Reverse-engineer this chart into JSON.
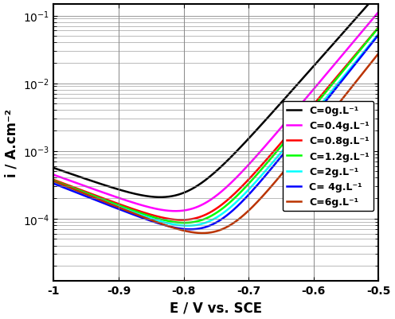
{
  "title": "",
  "xlabel": "E / V vs. SCE",
  "ylabel": "i / A.cm⁻²",
  "xlim": [
    -1.0,
    -0.5
  ],
  "ylim_log": [
    1.2e-05,
    0.15
  ],
  "curves": [
    {
      "label": "C=0g.L⁻¹",
      "color": "#000000",
      "E_corr": -0.8,
      "i_corr": 0.00012,
      "ba": 0.04,
      "bc": 0.13
    },
    {
      "label": "C=0.4g.L⁻¹",
      "color": "#FF00FF",
      "E_corr": -0.778,
      "i_corr": 7.5e-05,
      "ba": 0.038,
      "bc": 0.125
    },
    {
      "label": "C=0.8g.L⁻¹",
      "color": "#FF0000",
      "E_corr": -0.77,
      "i_corr": 5.5e-05,
      "ba": 0.038,
      "bc": 0.12
    },
    {
      "label": "C=1.2g.L⁻¹",
      "color": "#00FF00",
      "E_corr": -0.766,
      "i_corr": 5e-05,
      "ba": 0.037,
      "bc": 0.118
    },
    {
      "label": "C=2g.L⁻¹",
      "color": "#00FFFF",
      "E_corr": -0.762,
      "i_corr": 4.5e-05,
      "ba": 0.037,
      "bc": 0.116
    },
    {
      "label": "C= 4g.L⁻¹",
      "color": "#0000FF",
      "E_corr": -0.758,
      "i_corr": 4e-05,
      "ba": 0.036,
      "bc": 0.115
    },
    {
      "label": "C=6g.L⁻¹",
      "color": "#BB3300",
      "E_corr": -0.74,
      "i_corr": 3.5e-05,
      "ba": 0.036,
      "bc": 0.112
    }
  ],
  "legend_fontsize": 9,
  "tick_labelsize": 10,
  "axis_labelsize": 12,
  "linewidth": 1.8,
  "background_color": "#FFFFFF",
  "grid_color": "#888888"
}
